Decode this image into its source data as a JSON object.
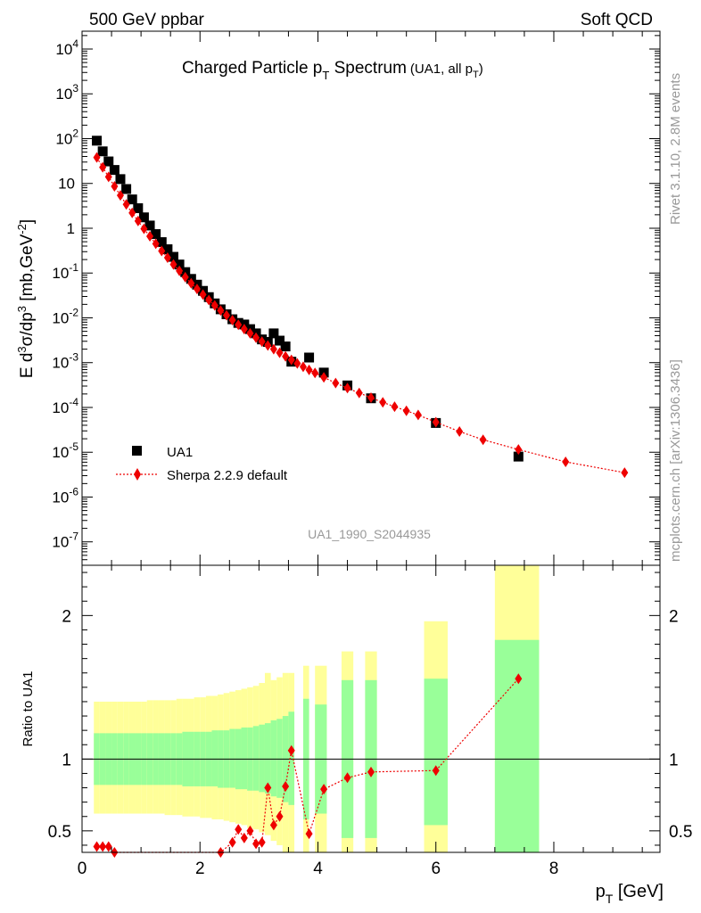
{
  "header": {
    "left": "500 GeV ppbar",
    "right": "Soft QCD"
  },
  "side_labels": {
    "version": "Rivet 3.1.10,  2.8M events",
    "site": "mcplots.cern.ch [arXiv:1306.3436]"
  },
  "chart_data": [
    {
      "type": "scatter",
      "panel": "main",
      "title_main": "Charged Particle p",
      "title_sub": "T",
      "title_tail": " Spectrum",
      "title_note": "(UA1, all p",
      "title_note_sub": "T",
      "title_note_tail": ")",
      "ylabel": "E d³σ/dp³ [mb,GeV⁻²]",
      "ylabel_parts": {
        "a": "E d",
        "a_sup": "3",
        "b": "σ/dp",
        "b_sup": "3",
        "c": " [mb,GeV",
        "c_sup": "-2",
        "d": "]"
      },
      "yscale": "log",
      "ylim": [
        3e-08,
        25000
      ],
      "xlim": [
        0,
        9.8
      ],
      "ytick_labels": [
        {
          "v": 1e-07,
          "base": "10",
          "exp": "-7"
        },
        {
          "v": 1e-06,
          "base": "10",
          "exp": "-6"
        },
        {
          "v": 1e-05,
          "base": "10",
          "exp": "-5"
        },
        {
          "v": 0.0001,
          "base": "10",
          "exp": "-4"
        },
        {
          "v": 0.001,
          "base": "10",
          "exp": "-3"
        },
        {
          "v": 0.01,
          "base": "10",
          "exp": "-2"
        },
        {
          "v": 0.1,
          "base": "10",
          "exp": "-1"
        },
        {
          "v": 1,
          "base": "1",
          "exp": ""
        },
        {
          "v": 10,
          "base": "10",
          "exp": ""
        },
        {
          "v": 100,
          "base": "10",
          "exp": "2"
        },
        {
          "v": 1000,
          "base": "10",
          "exp": "3"
        },
        {
          "v": 10000,
          "base": "10",
          "exp": "4"
        }
      ],
      "watermark": "UA1_1990_S2044935",
      "legend_position": "lower-left",
      "series": [
        {
          "name": "UA1",
          "color": "#000000",
          "marker": "square",
          "x": [
            0.25,
            0.35,
            0.45,
            0.55,
            0.65,
            0.75,
            0.85,
            0.95,
            1.05,
            1.15,
            1.25,
            1.35,
            1.45,
            1.55,
            1.65,
            1.75,
            1.85,
            1.95,
            2.05,
            2.15,
            2.25,
            2.35,
            2.45,
            2.55,
            2.65,
            2.75,
            2.85,
            2.95,
            3.05,
            3.15,
            3.25,
            3.35,
            3.45,
            3.55,
            3.85,
            4.1,
            4.5,
            4.9,
            6.0,
            7.4
          ],
          "y": [
            90,
            52,
            31,
            20,
            12.5,
            7.5,
            4.4,
            2.8,
            1.75,
            1.15,
            0.74,
            0.49,
            0.34,
            0.23,
            0.155,
            0.105,
            0.074,
            0.055,
            0.04,
            0.029,
            0.021,
            0.0155,
            0.012,
            0.0093,
            0.0077,
            0.0071,
            0.0056,
            0.0045,
            0.0033,
            0.0029,
            0.0045,
            0.0031,
            0.0023,
            0.00105,
            0.0013,
            0.0006,
            0.00031,
            0.00016,
            4.5e-05,
            8e-06
          ]
        },
        {
          "name": "Sherpa 2.2.9 default",
          "color": "#ee0000",
          "marker": "diamond",
          "line": "dotted",
          "x": [
            0.25,
            0.35,
            0.45,
            0.55,
            0.65,
            0.75,
            0.85,
            0.95,
            1.05,
            1.15,
            1.25,
            1.35,
            1.45,
            1.55,
            1.65,
            1.75,
            1.85,
            1.95,
            2.05,
            2.15,
            2.25,
            2.35,
            2.45,
            2.55,
            2.65,
            2.75,
            2.85,
            2.95,
            3.05,
            3.15,
            3.25,
            3.35,
            3.45,
            3.55,
            3.65,
            3.75,
            3.85,
            3.95,
            4.1,
            4.3,
            4.5,
            4.7,
            4.9,
            5.1,
            5.3,
            5.5,
            5.7,
            6.0,
            6.4,
            6.8,
            7.4,
            8.2,
            9.2
          ],
          "y": [
            38,
            23,
            14,
            8.6,
            5.4,
            3.4,
            2.2,
            1.45,
            0.97,
            0.66,
            0.45,
            0.31,
            0.22,
            0.155,
            0.112,
            0.081,
            0.059,
            0.044,
            0.033,
            0.025,
            0.019,
            0.0146,
            0.0114,
            0.0089,
            0.007,
            0.0056,
            0.0045,
            0.0036,
            0.00295,
            0.00242,
            0.002,
            0.00166,
            0.00138,
            0.00115,
            0.00096,
            0.00081,
            0.00069,
            0.00059,
            0.00047,
            0.00035,
            0.00027,
            0.00021,
            0.000165,
            0.00013,
            0.000104,
            8.4e-05,
            6.8e-05,
            4.7e-05,
            2.9e-05,
            1.9e-05,
            1.15e-05,
            6.1e-06,
            3.5e-06
          ]
        }
      ]
    },
    {
      "type": "line",
      "panel": "ratio",
      "ylabel": "Ratio to UA1",
      "xlabel": "p",
      "xlabel_sub": "T",
      "xlabel_tail": " [GeV]",
      "ylim": [
        0.35,
        2.35
      ],
      "xlim": [
        0,
        9.8
      ],
      "ytick_labels": [
        {
          "v": 0.5,
          "label": "0.5"
        },
        {
          "v": 1,
          "label": "1"
        },
        {
          "v": 2,
          "label": "2"
        }
      ],
      "xtick_labels": [
        {
          "v": 0,
          "label": "0"
        },
        {
          "v": 2,
          "label": "2"
        },
        {
          "v": 4,
          "label": "4"
        },
        {
          "v": 6,
          "label": "6"
        },
        {
          "v": 8,
          "label": "8"
        }
      ],
      "reference_line": 1,
      "band_colors": {
        "outer": "#ffff99",
        "inner": "#99ff99"
      },
      "bands": [
        [
          0.2,
          0.3,
          0.82,
          1.18,
          0.62,
          1.4
        ],
        [
          0.3,
          0.4,
          0.82,
          1.18,
          0.62,
          1.4
        ],
        [
          0.4,
          0.5,
          0.82,
          1.18,
          0.62,
          1.4
        ],
        [
          0.5,
          0.6,
          0.82,
          1.18,
          0.62,
          1.4
        ],
        [
          0.6,
          0.7,
          0.82,
          1.18,
          0.62,
          1.4
        ],
        [
          0.7,
          0.8,
          0.82,
          1.18,
          0.62,
          1.4
        ],
        [
          0.8,
          0.9,
          0.82,
          1.18,
          0.62,
          1.4
        ],
        [
          0.9,
          1.0,
          0.82,
          1.18,
          0.62,
          1.4
        ],
        [
          1.0,
          1.1,
          0.82,
          1.18,
          0.62,
          1.4
        ],
        [
          1.1,
          1.2,
          0.82,
          1.18,
          0.62,
          1.41
        ],
        [
          1.2,
          1.3,
          0.82,
          1.18,
          0.62,
          1.41
        ],
        [
          1.3,
          1.4,
          0.82,
          1.18,
          0.62,
          1.41
        ],
        [
          1.4,
          1.5,
          0.82,
          1.18,
          0.61,
          1.41
        ],
        [
          1.5,
          1.6,
          0.82,
          1.18,
          0.61,
          1.41
        ],
        [
          1.6,
          1.7,
          0.82,
          1.18,
          0.61,
          1.42
        ],
        [
          1.7,
          1.8,
          0.81,
          1.19,
          0.6,
          1.42
        ],
        [
          1.8,
          1.9,
          0.81,
          1.19,
          0.6,
          1.42
        ],
        [
          1.9,
          2.0,
          0.81,
          1.19,
          0.6,
          1.43
        ],
        [
          2.0,
          2.1,
          0.81,
          1.19,
          0.59,
          1.43
        ],
        [
          2.1,
          2.2,
          0.81,
          1.19,
          0.59,
          1.44
        ],
        [
          2.2,
          2.3,
          0.81,
          1.2,
          0.58,
          1.44
        ],
        [
          2.3,
          2.4,
          0.8,
          1.2,
          0.58,
          1.45
        ],
        [
          2.4,
          2.5,
          0.8,
          1.2,
          0.57,
          1.46
        ],
        [
          2.5,
          2.6,
          0.8,
          1.21,
          0.56,
          1.47
        ],
        [
          2.6,
          2.7,
          0.79,
          1.21,
          0.55,
          1.48
        ],
        [
          2.7,
          2.8,
          0.79,
          1.22,
          0.54,
          1.49
        ],
        [
          2.8,
          2.9,
          0.78,
          1.22,
          0.52,
          1.5
        ],
        [
          2.9,
          3.0,
          0.78,
          1.23,
          0.51,
          1.51
        ],
        [
          3.0,
          3.1,
          0.77,
          1.24,
          0.49,
          1.53
        ],
        [
          3.1,
          3.2,
          0.76,
          1.25,
          0.47,
          1.6
        ],
        [
          3.2,
          3.3,
          0.74,
          1.27,
          0.43,
          1.55
        ],
        [
          3.3,
          3.4,
          0.73,
          1.28,
          0.4,
          1.57
        ],
        [
          3.4,
          3.5,
          0.7,
          1.3,
          0.35,
          1.6
        ],
        [
          3.5,
          3.6,
          0.68,
          1.33,
          0.35,
          1.6
        ],
        [
          3.75,
          3.85,
          0.58,
          1.42,
          0.35,
          1.65
        ],
        [
          3.95,
          4.15,
          0.62,
          1.38,
          0.35,
          1.65
        ],
        [
          4.4,
          4.6,
          0.45,
          1.55,
          0.35,
          1.75
        ],
        [
          4.8,
          5.0,
          0.45,
          1.55,
          0.35,
          1.75
        ],
        [
          5.8,
          6.2,
          0.54,
          1.56,
          0.35,
          1.96
        ],
        [
          7.0,
          7.75,
          0.35,
          1.83,
          0.35,
          2.35
        ]
      ],
      "ratio": {
        "x": [
          0.25,
          0.35,
          0.45,
          0.55,
          2.35,
          2.55,
          2.65,
          2.75,
          2.85,
          2.95,
          3.05,
          3.15,
          3.25,
          3.35,
          3.45,
          3.55,
          3.85,
          4.1,
          4.5,
          4.9,
          6.0,
          7.4
        ],
        "y": [
          0.39,
          0.39,
          0.39,
          0.35,
          0.35,
          0.42,
          0.51,
          0.45,
          0.5,
          0.41,
          0.42,
          0.8,
          0.54,
          0.6,
          0.81,
          1.06,
          0.48,
          0.79,
          0.87,
          0.91,
          0.92,
          1.56
        ]
      }
    }
  ]
}
